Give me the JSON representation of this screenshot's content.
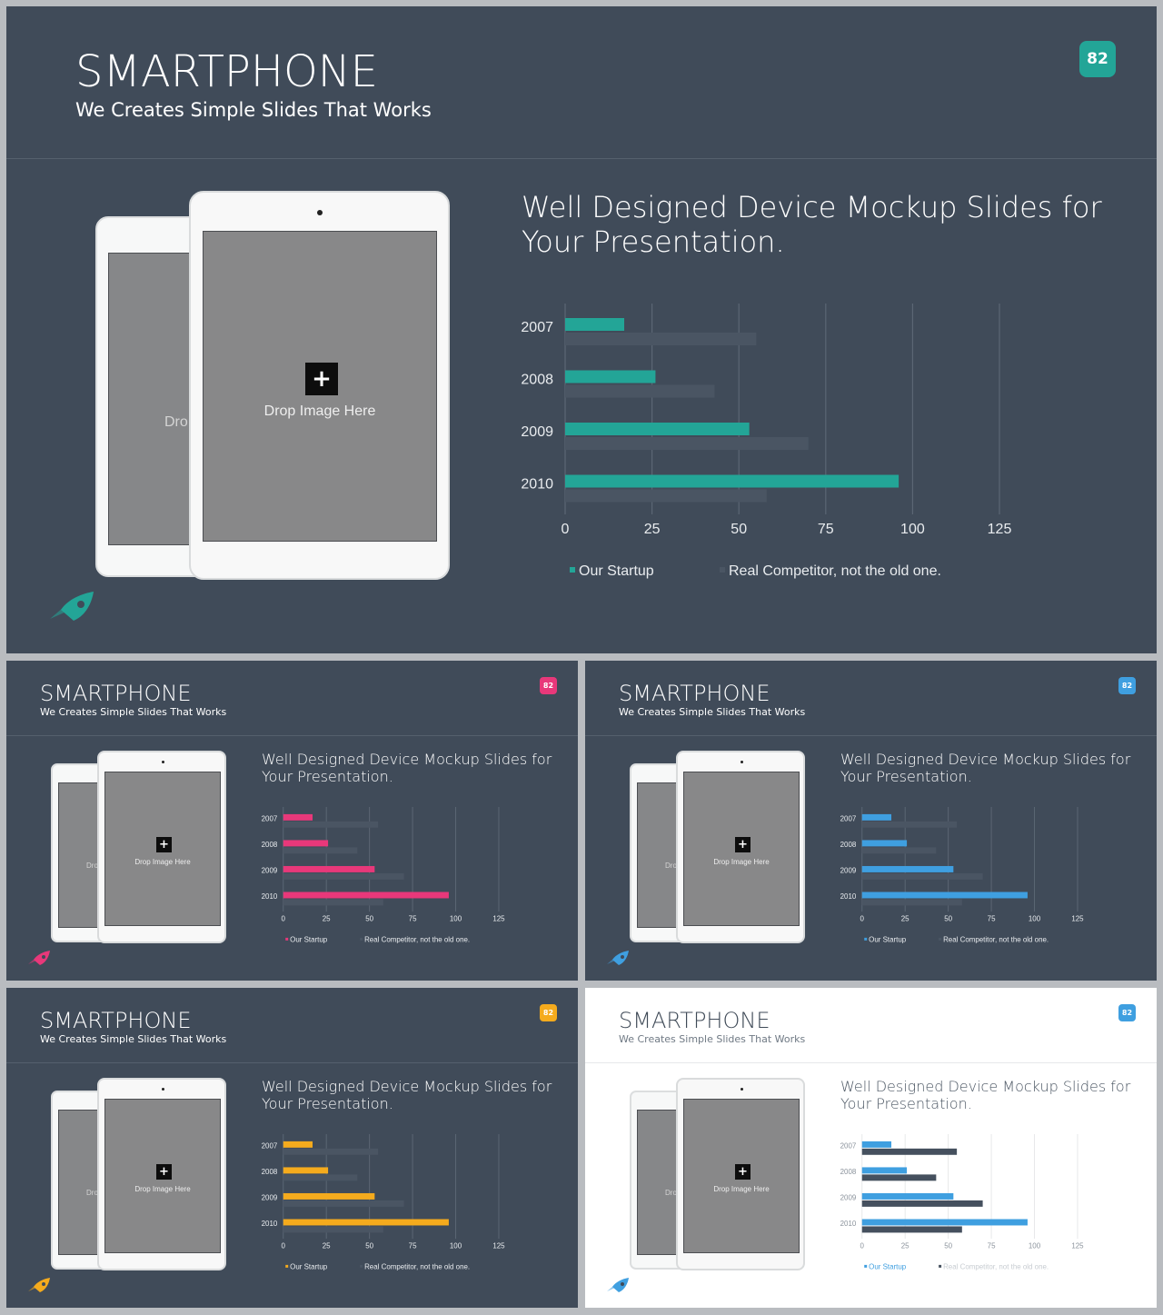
{
  "slides": [
    {
      "id": "main",
      "theme": "dark",
      "accent": "#23a597",
      "competitor_color": "#4a5563",
      "legend_competitor_color": "#4a5563",
      "badge_color": "#23a597"
    },
    {
      "id": "pink",
      "theme": "dark",
      "accent": "#e8387a",
      "competitor_color": "#4a5563",
      "legend_competitor_color": "#4a5563",
      "badge_color": "#e8387a"
    },
    {
      "id": "blue",
      "theme": "dark",
      "accent": "#3f9fe0",
      "competitor_color": "#4a5563",
      "legend_competitor_color": "#4a5563",
      "badge_color": "#3f9fe0"
    },
    {
      "id": "yellow",
      "theme": "dark",
      "accent": "#f5ab1d",
      "competitor_color": "#4a5563",
      "legend_competitor_color": "#4a5563",
      "badge_color": "#f5ab1d"
    },
    {
      "id": "light",
      "theme": "light",
      "accent": "#3f9fe0",
      "competitor_color": "#45505e",
      "legend_competitor_color": "#45505e",
      "badge_color": "#3f9fe0"
    }
  ],
  "content": {
    "title": "SMARTPHONE",
    "subtitle": "We Creates Simple Slides That Works",
    "badge": "82",
    "headline_line1": "Well Designed Device Mockup Slides for",
    "headline_line2": "Your Presentation.",
    "placeholder": "Drop Image Here",
    "placeholder_partial": "Dro",
    "plus_icon_glyph": "+",
    "icons": {
      "rocket": "rocket-icon",
      "plus": "plus-icon",
      "camera": "camera-dot-icon"
    }
  },
  "chart_data": {
    "type": "bar",
    "orientation": "horizontal",
    "categories": [
      "2007",
      "2008",
      "2009",
      "2010"
    ],
    "series": [
      {
        "name": "Our Startup",
        "values": [
          17,
          26,
          53,
          96
        ]
      },
      {
        "name": "Real Competitor, not the old one.",
        "values": [
          55,
          43,
          70,
          58
        ]
      }
    ],
    "x_ticks": [
      "0",
      "25",
      "50",
      "75",
      "100",
      "125"
    ],
    "xlim": [
      0,
      125
    ],
    "grid": "vertical",
    "legend_position": "bottom-left"
  }
}
